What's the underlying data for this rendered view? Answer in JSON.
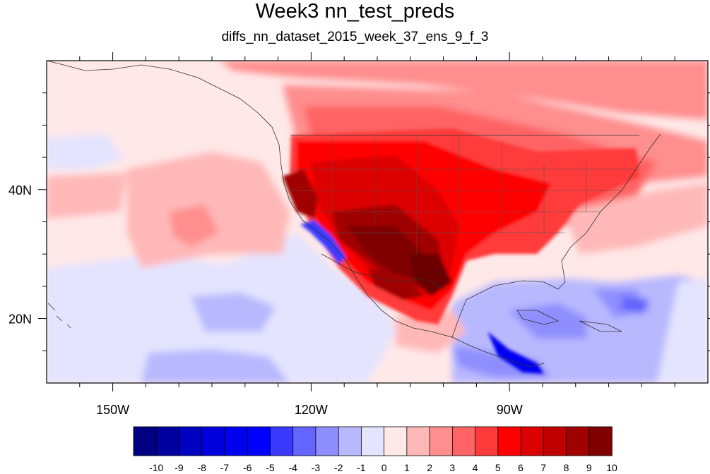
{
  "title": "Week3 nn_test_preds",
  "subtitle": "diffs_nn_dataset_2015_week_37_ens_9_f_3",
  "map": {
    "lon_range": [
      -160,
      -60
    ],
    "lat_range": [
      10,
      60
    ],
    "x_ticks": [
      {
        "value": -150,
        "label": "150W"
      },
      {
        "value": -120,
        "label": "120W"
      },
      {
        "value": -90,
        "label": "90W"
      }
    ],
    "y_ticks": [
      {
        "value": 40,
        "label": "40N"
      },
      {
        "value": 20,
        "label": "20N"
      }
    ],
    "dominant_pattern": "warm anomaly over western and central US, cool anomaly over Gulf of Mexico/Caribbean and off Baja California"
  },
  "colorbar": {
    "labels": [
      "-10",
      "-9",
      "-8",
      "-7",
      "-6",
      "-5",
      "-4",
      "-3",
      "-2",
      "-1",
      "0",
      "1",
      "2",
      "3",
      "4",
      "5",
      "6",
      "7",
      "8",
      "9",
      "10"
    ],
    "colors": [
      "#000080",
      "#0000a0",
      "#0000c0",
      "#0000dd",
      "#0000f0",
      "#0000ff",
      "#3a3aff",
      "#6464ff",
      "#8e8eff",
      "#b8b8ff",
      "#e4e4ff",
      "#ffe8e8",
      "#ffb8b8",
      "#ff8e8e",
      "#ff6464",
      "#ff3a3a",
      "#ff0000",
      "#dd0000",
      "#c00000",
      "#a00000",
      "#800000"
    ]
  }
}
